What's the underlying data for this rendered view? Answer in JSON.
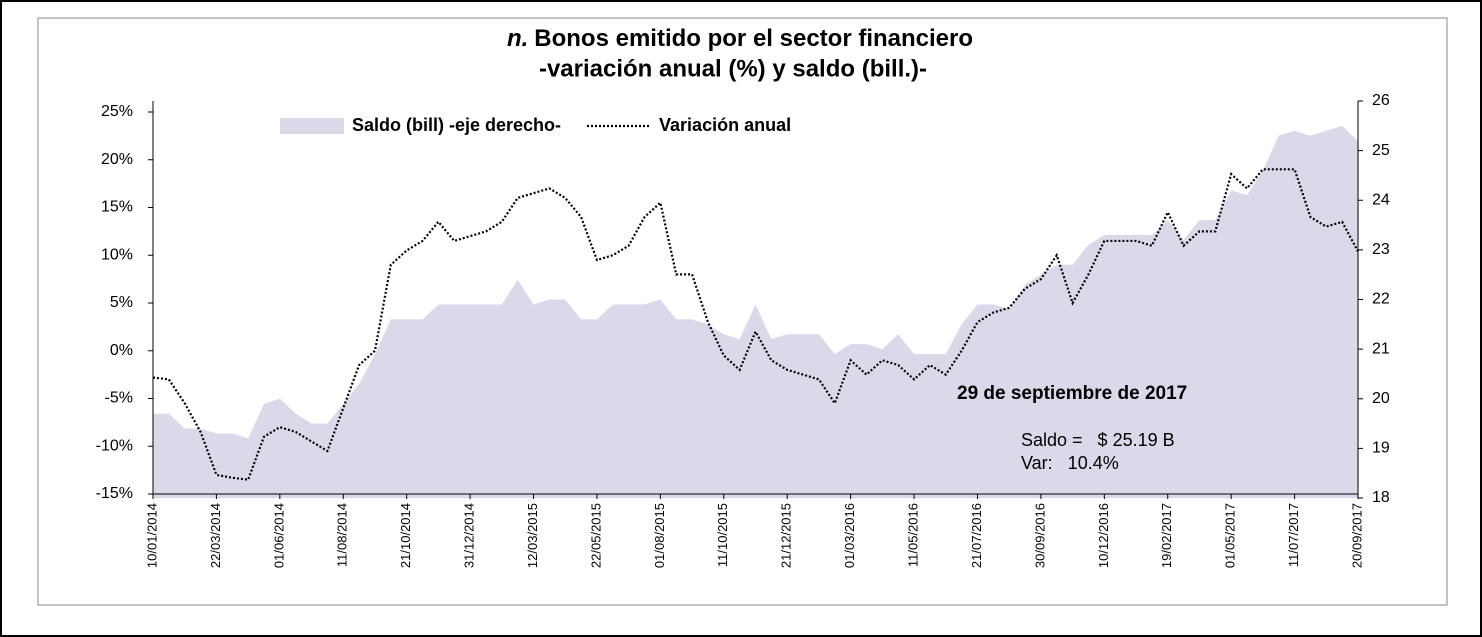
{
  "chart_data": {
    "type": "combo",
    "title_prefix": "n.",
    "title": "Bonos emitido por el sector financiero",
    "subtitle": "-variación anual (%) y saldo (bill.)-",
    "categories": [
      "10/01/2014",
      null,
      null,
      null,
      "22/03/2014",
      null,
      null,
      null,
      "01/06/2014",
      null,
      null,
      null,
      "11/08/2014",
      null,
      null,
      null,
      "21/10/2014",
      null,
      null,
      null,
      "31/12/2014",
      null,
      null,
      null,
      "12/03/2015",
      null,
      null,
      null,
      "22/05/2015",
      null,
      null,
      null,
      "01/08/2015",
      null,
      null,
      null,
      "11/10/2015",
      null,
      null,
      null,
      "21/12/2015",
      null,
      null,
      null,
      "01/03/2016",
      null,
      null,
      null,
      "11/05/2016",
      null,
      null,
      null,
      "21/07/2016",
      null,
      null,
      null,
      "30/09/2016",
      null,
      null,
      null,
      "10/12/2016",
      null,
      null,
      null,
      "19/02/2017",
      null,
      null,
      null,
      "01/05/2017",
      null,
      null,
      null,
      "11/07/2017",
      null,
      null,
      null,
      "20/09/2017"
    ],
    "series": [
      {
        "name": "Saldo (bill) -eje derecho-",
        "type": "area",
        "axis": "y2",
        "color": "#dcd7e9",
        "values": [
          19.7,
          19.7,
          19.4,
          19.4,
          19.3,
          19.3,
          19.2,
          19.9,
          20.0,
          19.7,
          19.5,
          19.5,
          19.9,
          20.3,
          20.9,
          21.6,
          21.6,
          21.6,
          21.9,
          21.9,
          21.9,
          21.9,
          21.9,
          22.4,
          21.9,
          22.0,
          22.0,
          21.6,
          21.6,
          21.9,
          21.9,
          21.9,
          22.0,
          21.6,
          21.6,
          21.5,
          21.3,
          21.2,
          21.9,
          21.2,
          21.3,
          21.3,
          21.3,
          20.9,
          21.1,
          21.1,
          21.0,
          21.3,
          20.9,
          20.9,
          20.9,
          21.5,
          21.9,
          21.9,
          21.8,
          22.3,
          22.5,
          22.7,
          22.7,
          23.1,
          23.3,
          23.3,
          23.3,
          23.3,
          23.6,
          23.2,
          23.6,
          23.6,
          24.2,
          24.1,
          24.6,
          25.3,
          25.4,
          25.3,
          25.4,
          25.5,
          25.19
        ]
      },
      {
        "name": "Variación anual",
        "type": "line",
        "axis": "y",
        "color": "#000000",
        "line_style": "dotted",
        "values": [
          -2.8,
          -3.0,
          -5.5,
          -8.5,
          -13.0,
          -13.3,
          -13.5,
          -9.0,
          -8.0,
          -8.5,
          -9.5,
          -10.5,
          -6.0,
          -1.5,
          0,
          9.0,
          10.5,
          11.5,
          13.5,
          11.5,
          12.0,
          12.5,
          13.5,
          16.0,
          16.5,
          17.0,
          16.0,
          14.0,
          9.5,
          10.0,
          11.0,
          14.0,
          15.5,
          8.0,
          8.0,
          3.0,
          -0.5,
          -2.0,
          2.0,
          -1.0,
          -2.0,
          -2.5,
          -3.0,
          -5.5,
          -1.0,
          -2.5,
          -1.0,
          -1.5,
          -3.0,
          -1.5,
          -2.5,
          0,
          3.0,
          4.0,
          4.5,
          6.5,
          7.5,
          10.0,
          5.0,
          8.0,
          11.5,
          11.5,
          11.5,
          11.0,
          14.5,
          11.0,
          12.5,
          12.5,
          18.5,
          17.0,
          19.0,
          19.0,
          19.0,
          14.0,
          13.0,
          13.5,
          10.4
        ]
      }
    ],
    "ylim": [
      -15,
      25
    ],
    "yticks": [
      {
        "value": -15,
        "label": "-15%"
      },
      {
        "value": -10,
        "label": "-10%"
      },
      {
        "value": -5,
        "label": "-5%"
      },
      {
        "value": 0,
        "label": "0%"
      },
      {
        "value": 5,
        "label": "5%"
      },
      {
        "value": 10,
        "label": "10%"
      },
      {
        "value": 15,
        "label": "15%"
      },
      {
        "value": 20,
        "label": "20%"
      },
      {
        "value": 25,
        "label": "25%"
      }
    ],
    "y2lim": [
      18,
      26
    ],
    "y2ticks": [
      18,
      19,
      20,
      21,
      22,
      23,
      24,
      25,
      26
    ],
    "legend": "top",
    "grid": false,
    "annotations": [
      "29 de septiembre de 2017",
      "Saldo =   $ 25.19 B",
      "Var:   10.4%"
    ]
  }
}
